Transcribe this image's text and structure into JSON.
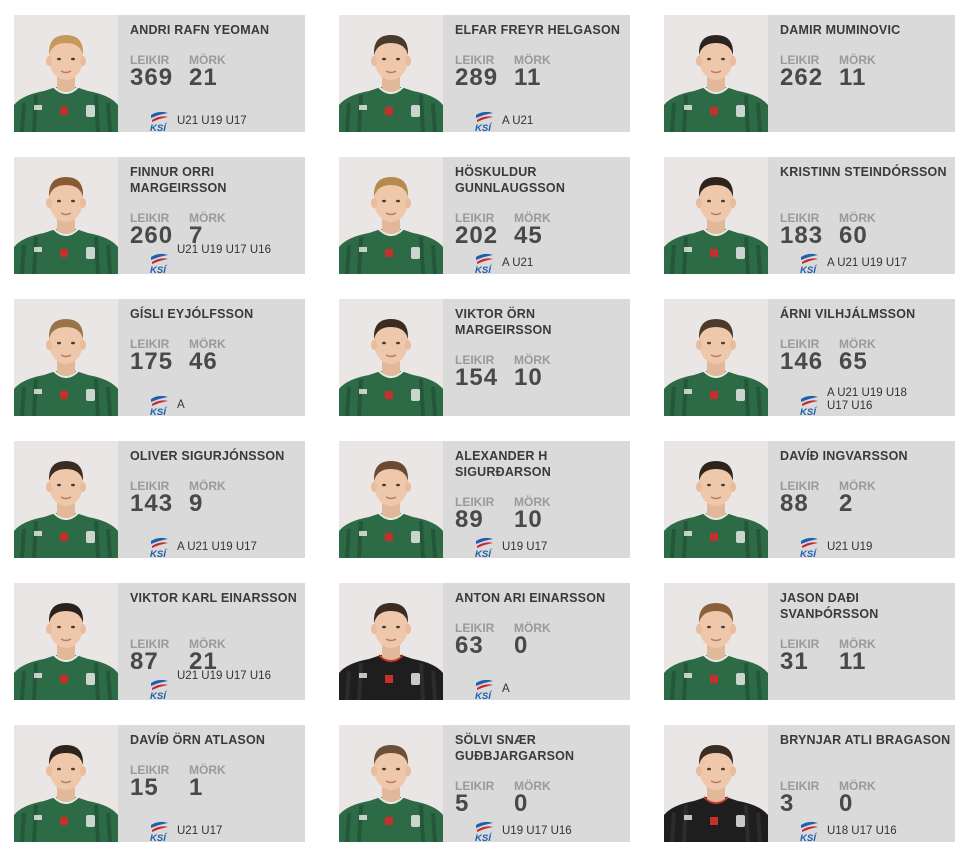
{
  "labels": {
    "games": "LEIKIR",
    "goals": "MÖRK",
    "ksi": "KSÍ"
  },
  "players": [
    {
      "name": "ANDRI RAFN YEOMAN",
      "games": "369",
      "goals": "21",
      "caps": "U21 U19 U17",
      "kit": "green",
      "hair": "#c49a5a"
    },
    {
      "name": "ELFAR FREYR HELGASON",
      "games": "289",
      "goals": "11",
      "caps": "A U21",
      "kit": "green",
      "hair": "#4a3a2c"
    },
    {
      "name": "DAMIR MUMINOVIC",
      "games": "262",
      "goals": "11",
      "caps": "",
      "kit": "green",
      "hair": "#2c241e"
    },
    {
      "name": "FINNUR ORRI MARGEIRSSON",
      "games": "260",
      "goals": "7",
      "caps": "U21 U19 U17 U16",
      "kit": "green",
      "hair": "#8a5a32"
    },
    {
      "name": "HÖSKULDUR GUNNLAUGSSON",
      "games": "202",
      "goals": "45",
      "caps": "A U21",
      "kit": "green",
      "hair": "#b58a4e"
    },
    {
      "name": "KRISTINN STEINDÓRSSON",
      "games": "183",
      "goals": "60",
      "caps": "A U21 U19 U17",
      "kit": "green",
      "hair": "#2e241c"
    },
    {
      "name": "GÍSLI EYJÓLFSSON",
      "games": "175",
      "goals": "46",
      "caps": "A",
      "kit": "green",
      "hair": "#9a7448"
    },
    {
      "name": "VIKTOR ÖRN MARGEIRSSON",
      "games": "154",
      "goals": "10",
      "caps": "",
      "kit": "green",
      "hair": "#3a2c22"
    },
    {
      "name": "ÁRNI VILHJÁLMSSON",
      "games": "146",
      "goals": "65",
      "caps": "A U21 U19 U18 U17 U16",
      "kit": "green",
      "hair": "#4e3a2a"
    },
    {
      "name": "OLIVER SIGURJÓNSSON",
      "games": "143",
      "goals": "9",
      "caps": "A U21 U19 U17",
      "kit": "green",
      "hair": "#3a2c22"
    },
    {
      "name": "ALEXANDER H SIGURÐARSON",
      "games": "89",
      "goals": "10",
      "caps": "U19 U17",
      "kit": "green",
      "hair": "#6a4a30"
    },
    {
      "name": "DAVÍÐ INGVARSSON",
      "games": "88",
      "goals": "2",
      "caps": "U21 U19",
      "kit": "green",
      "hair": "#2e241c"
    },
    {
      "name": "VIKTOR KARL EINARSSON",
      "games": "87",
      "goals": "21",
      "caps": "U21 U19 U17 U16",
      "kit": "green",
      "hair": "#2a221c"
    },
    {
      "name": "ANTON ARI EINARSSON",
      "games": "63",
      "goals": "0",
      "caps": "A",
      "kit": "black",
      "hair": "#3a2c22"
    },
    {
      "name": "JASON DAÐI SVANÞÓRSSON",
      "games": "31",
      "goals": "11",
      "caps": "",
      "kit": "green",
      "hair": "#8a6038"
    },
    {
      "name": "DAVÍÐ ÖRN ATLASON",
      "games": "15",
      "goals": "1",
      "caps": "U21 U17",
      "kit": "green",
      "hair": "#2e241c"
    },
    {
      "name": "SÖLVI SNÆR GUÐBJARGARSON",
      "games": "5",
      "goals": "0",
      "caps": "U19 U17 U16",
      "kit": "green",
      "hair": "#6a5038"
    },
    {
      "name": "BRYNJAR ATLI BRAGASON",
      "games": "3",
      "goals": "0",
      "caps": "U18 U17 U16",
      "kit": "black",
      "hair": "#3a2c22"
    }
  ]
}
